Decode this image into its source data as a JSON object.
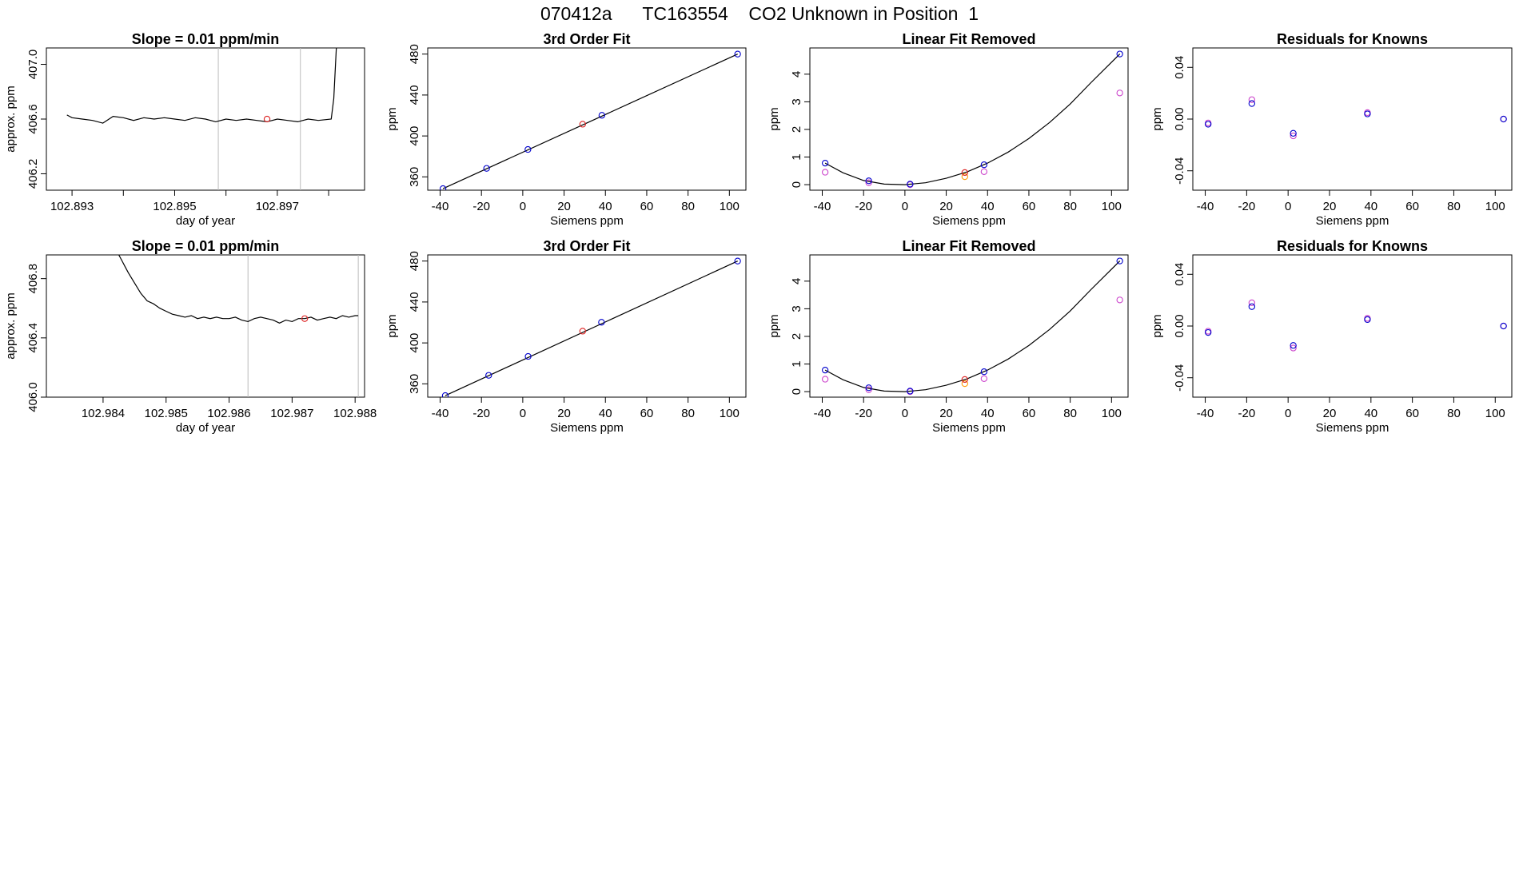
{
  "page_title": "070412a      TC163554    CO2 Unknown in Position  1",
  "colors": {
    "standard": "#0000cc",
    "unknown": "#dd2222",
    "residual_alt": "#cc44cc",
    "linear_unknown": "#ff9900",
    "line": "#000000",
    "marker": "#bbbbbb"
  },
  "chart_data": [
    {
      "type": "line",
      "panel": "row1-timeseries",
      "title": "Slope =  0.01  ppm/min",
      "xlabel": "day of year",
      "ylabel": "approx. ppm",
      "xlim": [
        102.8925,
        102.8987
      ],
      "ylim": [
        406.08,
        407.12
      ],
      "xticks": [
        102.893,
        102.894,
        102.895,
        102.896,
        102.897,
        102.898
      ],
      "xtick_labels": [
        "102.893",
        "",
        "102.895",
        "",
        "102.897",
        ""
      ],
      "yticks": [
        406.2,
        406.6,
        407.0
      ],
      "ytick_labels": [
        "406.2",
        "406.6",
        "407.0"
      ],
      "series": [
        {
          "x": [
            102.8929,
            102.893,
            102.8932,
            102.8934,
            102.8936,
            102.8938,
            102.894,
            102.8942,
            102.8944,
            102.8946,
            102.8948,
            102.895,
            102.8952,
            102.8954,
            102.8956,
            102.8958,
            102.896,
            102.8962,
            102.8964,
            102.8966,
            102.8968,
            102.897,
            102.8972,
            102.8974,
            102.8976,
            102.8978,
            102.89805,
            102.8981,
            102.89815
          ],
          "y": [
            406.63,
            406.61,
            406.6,
            406.59,
            406.57,
            406.62,
            406.61,
            406.59,
            406.61,
            406.6,
            406.61,
            406.6,
            406.59,
            406.61,
            406.6,
            406.58,
            406.6,
            406.59,
            406.6,
            406.59,
            406.58,
            406.6,
            406.59,
            406.58,
            406.6,
            406.59,
            406.6,
            406.75,
            407.12
          ]
        }
      ],
      "vlines": [
        102.89585,
        102.89745
      ],
      "unknown_point": {
        "x": 102.8968,
        "y": 406.6
      }
    },
    {
      "type": "scatter",
      "panel": "row1-fit",
      "title": "3rd Order Fit",
      "xlabel": "Siemens ppm",
      "ylabel": "ppm",
      "xlim": [
        -46,
        108
      ],
      "ylim": [
        347,
        486
      ],
      "xticks": [
        -40,
        -20,
        0,
        20,
        40,
        60,
        80,
        100
      ],
      "yticks": [
        360,
        400,
        440,
        480
      ],
      "line": {
        "x": [
          -38.6,
          104
        ],
        "y": [
          348.5,
          480
        ]
      },
      "standards": {
        "x": [
          -38.6,
          -17.5,
          2.5,
          38.3,
          104
        ],
        "y": [
          348.5,
          368.3,
          386.8,
          420.2,
          480
        ]
      },
      "unknown": {
        "x": [
          29
        ],
        "y": [
          411.5
        ]
      }
    },
    {
      "type": "scatter",
      "panel": "row1-linear-removed",
      "title": "Linear Fit Removed",
      "xlabel": "Siemens ppm",
      "ylabel": "ppm",
      "xlim": [
        -46,
        108
      ],
      "ylim": [
        -0.2,
        4.95
      ],
      "xticks": [
        -40,
        -20,
        0,
        20,
        40,
        60,
        80,
        100
      ],
      "yticks": [
        0,
        1,
        2,
        3,
        4
      ],
      "curve": {
        "x": [
          -38.6,
          -30,
          -20,
          -10,
          0,
          10,
          20,
          30,
          40,
          50,
          60,
          70,
          80,
          90,
          104
        ],
        "y": [
          0.78,
          0.43,
          0.15,
          0.02,
          0.0,
          0.07,
          0.23,
          0.46,
          0.78,
          1.18,
          1.67,
          2.25,
          2.92,
          3.69,
          4.73
        ]
      },
      "standards": {
        "x": [
          -38.6,
          -17.5,
          2.5,
          38.3,
          104
        ],
        "y": [
          0.78,
          0.14,
          0.02,
          0.72,
          4.73
        ]
      },
      "alt": {
        "x": [
          -38.6,
          -17.5,
          2.5,
          38.3,
          104
        ],
        "y": [
          0.45,
          0.07,
          0.0,
          0.47,
          3.32
        ]
      },
      "unknown": {
        "x": [
          29
        ],
        "y": [
          0.44
        ]
      },
      "unknown_alt": {
        "x": [
          29
        ],
        "y": [
          0.29
        ]
      }
    },
    {
      "type": "scatter",
      "panel": "row1-residuals",
      "title": "Residuals for Knowns",
      "xlabel": "Siemens ppm",
      "ylabel": "ppm",
      "xlim": [
        -46,
        108
      ],
      "ylim": [
        -0.055,
        0.055
      ],
      "xticks": [
        -40,
        -20,
        0,
        20,
        40,
        60,
        80,
        100
      ],
      "yticks": [
        -0.04,
        0.0,
        0.04
      ],
      "ytick_labels": [
        "-0.04",
        "0.00",
        "0.04"
      ],
      "standards": {
        "x": [
          -38.6,
          -17.5,
          2.5,
          38.3,
          104
        ],
        "y": [
          -0.004,
          0.012,
          -0.011,
          0.004,
          0.0
        ]
      },
      "alt": {
        "x": [
          -38.6,
          -17.5,
          2.5,
          38.3,
          104
        ],
        "y": [
          -0.003,
          0.015,
          -0.013,
          0.005,
          0.0
        ]
      }
    },
    {
      "type": "line",
      "panel": "row2-timeseries",
      "title": "Slope =  0.01  ppm/min",
      "xlabel": "day of year",
      "ylabel": "approx. ppm",
      "xlim": [
        102.9831,
        102.98815
      ],
      "ylim": [
        406.0,
        406.96
      ],
      "xticks": [
        102.984,
        102.985,
        102.986,
        102.987,
        102.988
      ],
      "xtick_labels": [
        "102.984",
        "102.985",
        "102.986",
        "102.987",
        "102.988"
      ],
      "yticks": [
        406.0,
        406.4,
        406.8
      ],
      "ytick_labels": [
        "406.0",
        "406.4",
        "406.8"
      ],
      "series": [
        {
          "x": [
            102.98425,
            102.9843,
            102.98435,
            102.9844,
            102.9845,
            102.9846,
            102.9847,
            102.9848,
            102.9849,
            102.985,
            102.9851,
            102.9852,
            102.9853,
            102.9854,
            102.9855,
            102.9856,
            102.9857,
            102.9858,
            102.9859,
            102.986,
            102.9861,
            102.9862,
            102.9863,
            102.9864,
            102.9865,
            102.9866,
            102.9867,
            102.9868,
            102.9869,
            102.987,
            102.9871,
            102.9872,
            102.9873,
            102.9874,
            102.9875,
            102.9876,
            102.9877,
            102.9878,
            102.9879,
            102.988,
            102.98805
          ],
          "y": [
            406.96,
            406.92,
            406.88,
            406.84,
            406.77,
            406.7,
            406.65,
            406.63,
            406.6,
            406.58,
            406.56,
            406.55,
            406.54,
            406.55,
            406.53,
            406.54,
            406.53,
            406.54,
            406.53,
            406.53,
            406.54,
            406.52,
            406.51,
            406.53,
            406.54,
            406.53,
            406.52,
            406.5,
            406.52,
            406.51,
            406.53,
            406.53,
            406.54,
            406.52,
            406.53,
            406.54,
            406.53,
            406.55,
            406.54,
            406.55,
            406.55
          ]
        }
      ],
      "vlines": [
        102.9863,
        102.98805
      ],
      "unknown_point": {
        "x": 102.9872,
        "y": 406.53
      }
    },
    {
      "type": "scatter",
      "panel": "row2-fit",
      "title": "3rd Order Fit",
      "xlabel": "Siemens ppm",
      "ylabel": "ppm",
      "xlim": [
        -46,
        108
      ],
      "ylim": [
        347,
        486
      ],
      "xticks": [
        -40,
        -20,
        0,
        20,
        40,
        60,
        80,
        100
      ],
      "yticks": [
        360,
        400,
        440,
        480
      ],
      "line": {
        "x": [
          -37.5,
          104
        ],
        "y": [
          348.5,
          480
        ]
      },
      "standards": {
        "x": [
          -37.5,
          -16.5,
          2.6,
          38.1,
          104
        ],
        "y": [
          348.5,
          368.3,
          386.8,
          420.2,
          480
        ]
      },
      "unknown": {
        "x": [
          29
        ],
        "y": [
          411.5
        ]
      }
    },
    {
      "type": "scatter",
      "panel": "row2-linear-removed",
      "title": "Linear Fit Removed",
      "xlabel": "Siemens ppm",
      "ylabel": "ppm",
      "xlim": [
        -46,
        108
      ],
      "ylim": [
        -0.2,
        4.95
      ],
      "xticks": [
        -40,
        -20,
        0,
        20,
        40,
        60,
        80,
        100
      ],
      "yticks": [
        0,
        1,
        2,
        3,
        4
      ],
      "curve": {
        "x": [
          -38.6,
          -30,
          -20,
          -10,
          0,
          10,
          20,
          30,
          40,
          50,
          60,
          70,
          80,
          90,
          104
        ],
        "y": [
          0.78,
          0.43,
          0.15,
          0.02,
          0.0,
          0.07,
          0.23,
          0.46,
          0.78,
          1.18,
          1.67,
          2.25,
          2.92,
          3.69,
          4.73
        ]
      },
      "standards": {
        "x": [
          -38.6,
          -17.5,
          2.5,
          38.3,
          104
        ],
        "y": [
          0.78,
          0.14,
          0.02,
          0.72,
          4.73
        ]
      },
      "alt": {
        "x": [
          -38.6,
          -17.5,
          2.5,
          38.3,
          104
        ],
        "y": [
          0.45,
          0.07,
          0.0,
          0.47,
          3.32
        ]
      },
      "unknown": {
        "x": [
          29
        ],
        "y": [
          0.44
        ]
      },
      "unknown_alt": {
        "x": [
          29
        ],
        "y": [
          0.29
        ]
      }
    },
    {
      "type": "scatter",
      "panel": "row2-residuals",
      "title": "Residuals for Knowns",
      "xlabel": "Siemens ppm",
      "ylabel": "ppm",
      "xlim": [
        -46,
        108
      ],
      "ylim": [
        -0.055,
        0.055
      ],
      "xticks": [
        -40,
        -20,
        0,
        20,
        40,
        60,
        80,
        100
      ],
      "yticks": [
        -0.04,
        0.0,
        0.04
      ],
      "ytick_labels": [
        "-0.04",
        "0.00",
        "0.04"
      ],
      "standards": {
        "x": [
          -38.6,
          -17.5,
          2.5,
          38.3,
          104
        ],
        "y": [
          -0.005,
          0.015,
          -0.015,
          0.005,
          0.0
        ]
      },
      "alt": {
        "x": [
          -38.6,
          -17.5,
          2.5,
          38.3,
          104
        ],
        "y": [
          -0.004,
          0.018,
          -0.017,
          0.006,
          0.0
        ]
      }
    }
  ]
}
